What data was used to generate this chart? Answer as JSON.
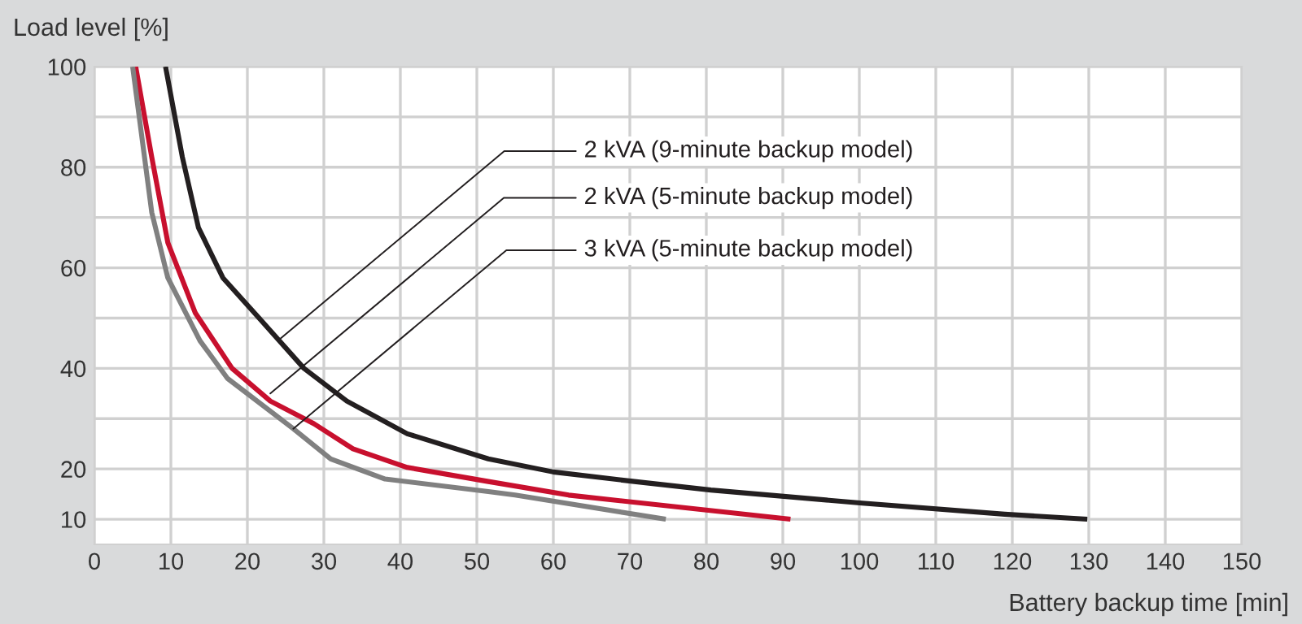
{
  "chart_data": {
    "type": "line",
    "xlabel": "Battery backup time [min]",
    "ylabel": "Load level [%]",
    "xlim": [
      0,
      150
    ],
    "ylim": [
      5,
      100
    ],
    "xticks": [
      0,
      10,
      20,
      30,
      40,
      50,
      60,
      70,
      80,
      90,
      100,
      110,
      120,
      130,
      140,
      150
    ],
    "yticks": [
      10,
      20,
      {
        "value": 30,
        "label": null
      },
      40,
      {
        "value": 50,
        "label": null
      },
      60,
      {
        "value": 70,
        "label": null
      },
      80,
      {
        "value": 90,
        "label": null
      },
      100
    ],
    "grid": true,
    "marker": "none",
    "line_style": "solid",
    "series": [
      {
        "color": "#231f20",
        "x": [
          9.3,
          11.5,
          13.6,
          16.8,
          21.7,
          27.4,
          33,
          40.9,
          51.5,
          60,
          70.6,
          80.6,
          100.4,
          119,
          129.8
        ],
        "values": [
          100,
          82,
          68,
          58,
          49.7,
          40,
          33.5,
          27,
          22,
          19.4,
          17.5,
          15.8,
          13.2,
          11,
          10
        ]
      },
      {
        "color": "#c8102e",
        "x": [
          5.4,
          7.5,
          9.6,
          13.2,
          18,
          23,
          28.7,
          33.8,
          40.9,
          51.5,
          62,
          91
        ],
        "values": [
          100,
          82,
          65,
          51,
          40,
          33.5,
          29,
          24,
          20.3,
          17.5,
          14.8,
          10
        ]
      },
      {
        "color": "#808080",
        "x": [
          5.0,
          7.5,
          9.6,
          13.8,
          17.4,
          26,
          30.9,
          38,
          51.5,
          55,
          74.7
        ],
        "values": [
          100,
          71,
          58,
          45.5,
          38,
          28,
          22,
          18,
          15.5,
          14.8,
          10
        ]
      }
    ],
    "annotations": [
      {
        "text": "2 kVA (9-minute backup model)",
        "x": 24,
        "y": 45.5
      },
      {
        "text": "2 kVA (5-minute backup model)",
        "x": 23,
        "y": 35
      },
      {
        "text": "3 kVA (5-minute backup model)",
        "x": 26,
        "y": 28
      }
    ]
  }
}
